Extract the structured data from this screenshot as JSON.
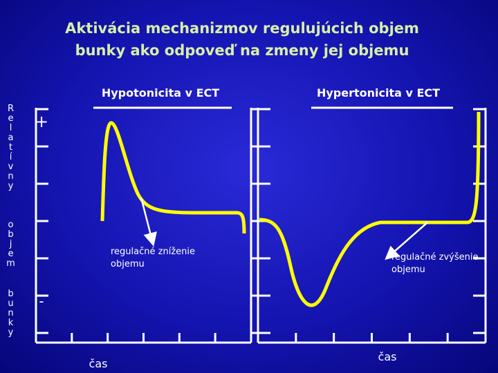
{
  "header": {
    "title": [
      "Aktivácia mechanizmov regulujúcich objem",
      "bunky ako odpoveď na zmeny jej objemu"
    ]
  },
  "y_axis_label": [
    "Relatívny",
    "objem",
    "bunky"
  ],
  "plus_sign": "+",
  "minus_sign": "-",
  "panels": [
    {
      "title": "Hypotonicita v ECT",
      "annotation": [
        "regulačné zníženie",
        "objemu"
      ],
      "x_axis_label": "čas"
    },
    {
      "title": "Hypertonicita v ECT",
      "annotation": [
        "regulačné zvýšenie",
        "objemu"
      ],
      "x_axis_label": "čas"
    }
  ]
}
